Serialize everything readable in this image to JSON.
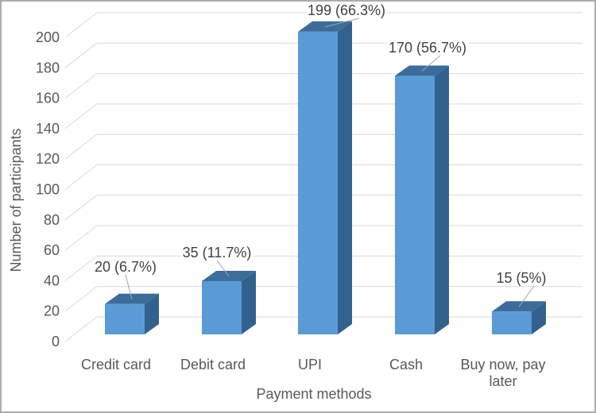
{
  "figure": {
    "background": "#ffffff",
    "border_color": "#aaadb0"
  },
  "chart_data": {
    "type": "bar",
    "style": "3d-column",
    "title": "",
    "xlabel": "Payment methods",
    "ylabel": "Number of participants",
    "categories": [
      "Credit card",
      "Debit card",
      "UPI",
      "Cash",
      "Buy now, pay later"
    ],
    "categories_display": [
      [
        "Credit card"
      ],
      [
        "Debit card"
      ],
      [
        "UPI"
      ],
      [
        "Cash"
      ],
      [
        "Buy now, pay",
        "later"
      ]
    ],
    "values": [
      20,
      35,
      199,
      170,
      15
    ],
    "percentages": [
      6.7,
      11.7,
      66.3,
      56.7,
      5
    ],
    "data_labels": [
      "20 (6.7%)",
      "35 (11.7%)",
      "199 (66.3%)",
      "170 (56.7%)",
      "15 (5%)"
    ],
    "ylim": [
      0,
      200
    ],
    "ytick_step": 20,
    "yticks": [
      "0",
      "20",
      "40",
      "60",
      "80",
      "100",
      "120",
      "140",
      "160",
      "180",
      "200"
    ],
    "grid": true,
    "legend": false,
    "colors": {
      "bar_front": "#5b9bd5",
      "bar_top": "#3d6c9b",
      "bar_side": "#33618e",
      "gridline": "#d9d9d9",
      "leader_line": "#a6a6a6",
      "axis_text": "#595959",
      "data_label_text": "#404040"
    }
  }
}
